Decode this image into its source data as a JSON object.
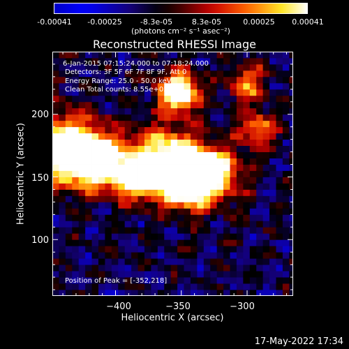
{
  "colorbar": {
    "ticks": [
      "-0.00041",
      "-0.00025",
      "-8.3e-05",
      "8.3e-05",
      "0.00025",
      "0.00041"
    ],
    "unit_label": "(photons cm⁻² s⁻¹ asec⁻²)"
  },
  "chart_data": {
    "type": "heatmap",
    "title": "Reconstructed RHESSI Image",
    "xlabel": "Heliocentric X (arcsec)",
    "ylabel": "Heliocentric Y (arcsec)",
    "xlim": [
      -448,
      -265
    ],
    "ylim": [
      55,
      250
    ],
    "x_ticks": [
      -400,
      -350,
      -300
    ],
    "y_ticks": [
      100,
      150,
      200
    ],
    "x_tick_labels": [
      "−400",
      "−350",
      "−300"
    ],
    "y_tick_labels": [
      "100",
      "150",
      "200"
    ],
    "colorbar_range": [
      -0.00041,
      0.00041
    ],
    "peak": [
      -352,
      218
    ],
    "annotations": [
      "6-Jan-2015 07:15:24.000 to 07:18:24.000",
      "Detectors: 3F 5F 6F 7F 8F 9F, Att 0",
      "Energy Range: 25.0 - 50.0 keV",
      "Clean     Total counts: 8.55e+05",
      "Position of Peak = [-352,218]"
    ]
  },
  "footer": {
    "timestamp": "17-May-2022 17:34"
  }
}
